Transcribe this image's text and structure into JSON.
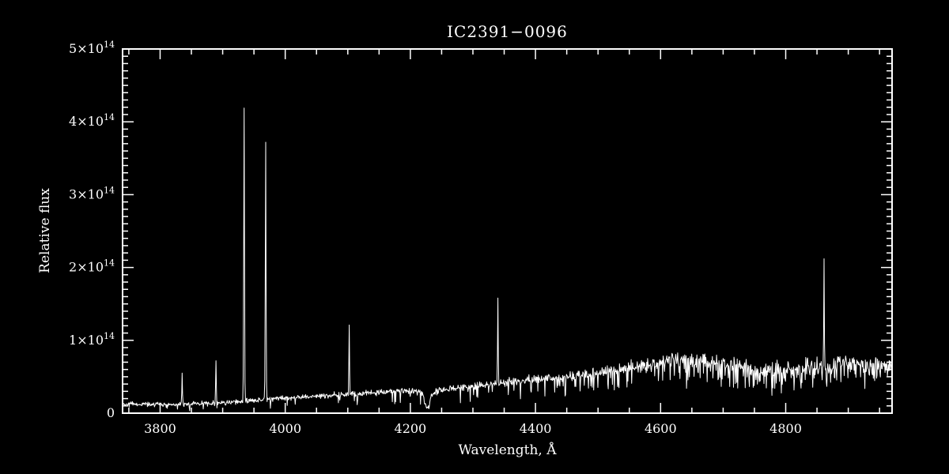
{
  "figure": {
    "background": "#000000",
    "foreground": "#ffffff"
  },
  "chart_data": {
    "type": "line",
    "title": "IC2391−0096",
    "xlabel": "Wavelength, Å",
    "ylabel": "Relative flux",
    "xlim": [
      3740,
      4970
    ],
    "ylim": [
      0,
      5
    ],
    "flux_unit": "×10¹⁴",
    "grid": false,
    "legend": "none",
    "x_ticks": [
      {
        "value": 3800,
        "label": "3800"
      },
      {
        "value": 4000,
        "label": "4000"
      },
      {
        "value": 4200,
        "label": "4200"
      },
      {
        "value": 4400,
        "label": "4400"
      },
      {
        "value": 4600,
        "label": "4600"
      },
      {
        "value": 4800,
        "label": "4800"
      }
    ],
    "x_minor_step": 50,
    "y_ticks": [
      {
        "value": 0,
        "label": "0",
        "exp": ""
      },
      {
        "value": 1,
        "label": "1×10",
        "exp": "14"
      },
      {
        "value": 2,
        "label": "2×10",
        "exp": "14"
      },
      {
        "value": 3,
        "label": "3×10",
        "exp": "14"
      },
      {
        "value": 4,
        "label": "4×10",
        "exp": "14"
      },
      {
        "value": 5,
        "label": "5×10",
        "exp": "14"
      }
    ],
    "y_minor_step": 0.1,
    "continuum": [
      [
        3740,
        0.13
      ],
      [
        3780,
        0.12
      ],
      [
        3820,
        0.12
      ],
      [
        3860,
        0.13
      ],
      [
        3900,
        0.14
      ],
      [
        3940,
        0.17
      ],
      [
        3980,
        0.2
      ],
      [
        4020,
        0.22
      ],
      [
        4060,
        0.24
      ],
      [
        4100,
        0.26
      ],
      [
        4140,
        0.28
      ],
      [
        4180,
        0.31
      ],
      [
        4210,
        0.3
      ],
      [
        4230,
        0.28
      ],
      [
        4260,
        0.33
      ],
      [
        4300,
        0.37
      ],
      [
        4350,
        0.42
      ],
      [
        4400,
        0.46
      ],
      [
        4450,
        0.5
      ],
      [
        4500,
        0.55
      ],
      [
        4550,
        0.62
      ],
      [
        4600,
        0.7
      ],
      [
        4640,
        0.74
      ],
      [
        4680,
        0.7
      ],
      [
        4720,
        0.66
      ],
      [
        4760,
        0.6
      ],
      [
        4800,
        0.62
      ],
      [
        4840,
        0.64
      ],
      [
        4880,
        0.66
      ],
      [
        4920,
        0.7
      ],
      [
        4970,
        0.68
      ]
    ],
    "noise_amp": [
      [
        3740,
        0.03
      ],
      [
        4000,
        0.032
      ],
      [
        4200,
        0.04
      ],
      [
        4350,
        0.055
      ],
      [
        4500,
        0.075
      ],
      [
        4650,
        0.095
      ],
      [
        4970,
        0.11
      ]
    ],
    "absorption_prob": [
      [
        3740,
        0.06
      ],
      [
        4150,
        0.06
      ],
      [
        4300,
        0.1
      ],
      [
        4500,
        0.2
      ],
      [
        4700,
        0.28
      ],
      [
        4970,
        0.3
      ]
    ],
    "absorption_depth": [
      [
        3740,
        0.75
      ],
      [
        4100,
        0.6
      ],
      [
        4400,
        0.5
      ],
      [
        4970,
        0.45
      ]
    ],
    "absorption_features": [
      {
        "wavelength": 4227,
        "depth": 0.8,
        "sigma": 4
      }
    ],
    "emission_lines": [
      {
        "wavelength": 3835,
        "peak": 0.55
      },
      {
        "wavelength": 3889,
        "peak": 0.72
      },
      {
        "wavelength": 3934,
        "peak": 4.19
      },
      {
        "wavelength": 3969,
        "peak": 3.72
      },
      {
        "wavelength": 4102,
        "peak": 1.21
      },
      {
        "wavelength": 4340,
        "peak": 1.58
      },
      {
        "wavelength": 4861,
        "peak": 2.12
      }
    ],
    "sample_step": 0.75,
    "random_seed": 42
  }
}
